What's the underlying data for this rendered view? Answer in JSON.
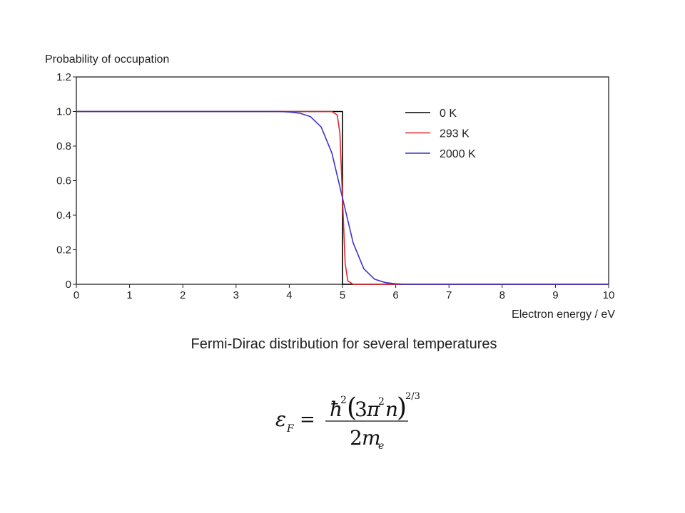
{
  "chart_data": {
    "type": "line",
    "title": "Fermi-Dirac distribution for several temperatures",
    "ylabel": "Probability of occupation",
    "xlabel": "Electron energy / eV",
    "xlim": [
      0,
      10
    ],
    "ylim": [
      0,
      1.2
    ],
    "x_ticks": [
      "0",
      "1",
      "2",
      "3",
      "4",
      "5",
      "6",
      "7",
      "8",
      "9",
      "10"
    ],
    "y_ticks": [
      "0",
      "0.2",
      "0.4",
      "0.6",
      "0.8",
      "1.0",
      "1.2"
    ],
    "grid": false,
    "legend_position": "top-right",
    "fermi_energy": 5,
    "series": [
      {
        "name": "0 K",
        "color": "#000000",
        "x": [
          0,
          4.9,
          4.95,
          5.0,
          5.0,
          5.05,
          5.1,
          10
        ],
        "y": [
          1.0,
          1.0,
          1.0,
          1.0,
          0,
          0,
          0,
          0
        ]
      },
      {
        "name": "293 K",
        "color": "#e8242b",
        "x": [
          0,
          4.8,
          4.85,
          4.9,
          4.95,
          5.0,
          5.05,
          5.1,
          5.15,
          5.2,
          10
        ],
        "y": [
          1.0,
          1.0,
          0.99,
          0.98,
          0.88,
          0.5,
          0.12,
          0.02,
          0.01,
          0,
          0
        ]
      },
      {
        "name": "2000 K",
        "color": "#3a35c9",
        "x": [
          0,
          3.8,
          4.0,
          4.2,
          4.4,
          4.6,
          4.8,
          5.0,
          5.2,
          5.4,
          5.6,
          5.8,
          6.0,
          6.2,
          10
        ],
        "y": [
          1.0,
          1.0,
          0.997,
          0.99,
          0.97,
          0.91,
          0.76,
          0.5,
          0.24,
          0.09,
          0.03,
          0.01,
          0.003,
          0.0,
          0.0
        ]
      }
    ]
  },
  "formula": {
    "lhs": "ε",
    "lhs_sub": "F",
    "equals": "=",
    "num_hbar": "ħ",
    "num_sup2": "2",
    "num_paren_open": "(",
    "num_three": "3",
    "num_pi": "π",
    "num_pi_sup": "2",
    "num_n": "n",
    "num_paren_close": ")",
    "num_exp": "2/3",
    "den_two": "2",
    "den_m": "m",
    "den_sub": "e"
  }
}
